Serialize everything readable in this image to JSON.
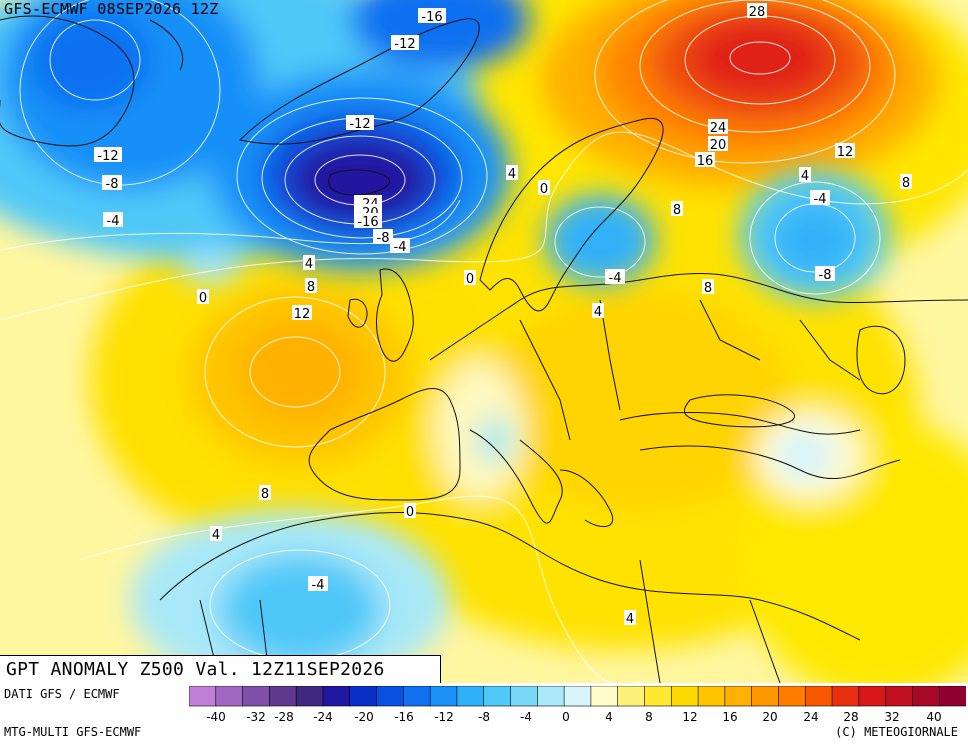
{
  "header": {
    "model_run": "GFS-ECMWF 08SEP2026 12Z"
  },
  "map": {
    "title": "GPT ANOMALY Z500 Val. 12Z11SEP2026",
    "contour_labels": [
      {
        "text": "-16"
      },
      {
        "text": "-12"
      },
      {
        "text": "28"
      },
      {
        "text": "-12"
      },
      {
        "text": "-12"
      },
      {
        "text": "-8"
      },
      {
        "text": "-4"
      },
      {
        "text": "24"
      },
      {
        "text": "20"
      },
      {
        "text": "16"
      },
      {
        "text": "12"
      },
      {
        "text": "4"
      },
      {
        "text": "0"
      },
      {
        "text": "-4"
      },
      {
        "text": "8"
      },
      {
        "text": "-24"
      },
      {
        "text": "-20"
      },
      {
        "text": "-16"
      },
      {
        "text": "-8"
      },
      {
        "text": "-4"
      },
      {
        "text": "0"
      },
      {
        "text": "8"
      },
      {
        "text": "4"
      },
      {
        "text": "0"
      },
      {
        "text": "-4"
      },
      {
        "text": "-8"
      },
      {
        "text": "4"
      },
      {
        "text": "8"
      },
      {
        "text": "12"
      },
      {
        "text": "8"
      },
      {
        "text": "4"
      },
      {
        "text": "8"
      },
      {
        "text": "0"
      },
      {
        "text": "4"
      },
      {
        "text": "-4"
      },
      {
        "text": "4"
      }
    ]
  },
  "footer": {
    "source": "DATI GFS / ECMWF",
    "model": "MTG-MULTI GFS-ECMWF",
    "copyright": "(C) METEOGIORNALE"
  },
  "colorbar": {
    "tick_labels": [
      "-40",
      "-32",
      "-28",
      "-24",
      "-20",
      "-16",
      "-12",
      "-8",
      "-4",
      "0",
      "4",
      "8",
      "12",
      "16",
      "20",
      "24",
      "28",
      "32",
      "40"
    ],
    "colors": [
      "#c080d8",
      "#a068c0",
      "#8050a8",
      "#603890",
      "#402880",
      "#2018a0",
      "#0830c8",
      "#0850e0",
      "#1070f0",
      "#1890f8",
      "#30b0f8",
      "#50c8f8",
      "#78d8f8",
      "#a8e8f8",
      "#d8f4fc",
      "#fffccc",
      "#fff07a",
      "#ffe830",
      "#ffd800",
      "#ffc400",
      "#ffb000",
      "#ff9800",
      "#ff7c00",
      "#f85800",
      "#e83010",
      "#d81818",
      "#c01020",
      "#a80828",
      "#900030"
    ]
  },
  "colors": {
    "neutral": "#fff8c0",
    "warm": "#ffe200",
    "cold": "#20a0f0"
  }
}
